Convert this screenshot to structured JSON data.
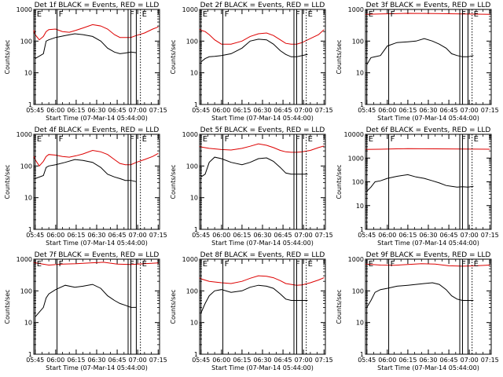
{
  "colors": {
    "events": "#000000",
    "lld": "#dd0000",
    "axis": "#000000"
  },
  "shared": {
    "xlabel": "Start Time (07-Mar-14 05:44:00)",
    "ylabel": "Counts/sec",
    "x_tick_labels": [
      "05:45",
      "06:00",
      "06:15",
      "06:30",
      "06:45",
      "07:00",
      "07:15"
    ]
  },
  "chart_data": [
    {
      "type": "line",
      "title": "Det 1f BLACK = Events, RED = LLD",
      "xlabel": "Start Time (07-Mar-14 05:44:00)",
      "ylabel": "Counts/sec",
      "scale": "log",
      "ylim": [
        1,
        1000
      ],
      "y_ticks": [
        "1",
        "10",
        "100",
        "1000"
      ],
      "series": [
        {
          "name": "Events",
          "color": "#000000",
          "x": [
            0,
            6,
            8,
            10,
            15,
            22,
            29,
            35,
            42,
            48,
            53,
            58,
            62,
            66,
            70,
            74
          ],
          "values": [
            28,
            40,
            100,
            110,
            130,
            150,
            170,
            160,
            140,
            100,
            60,
            45,
            40,
            42,
            45,
            43
          ]
        },
        {
          "name": "LLD",
          "color": "#dd0000",
          "x": [
            -3,
            0,
            3,
            6,
            8,
            10,
            15,
            20,
            25,
            30,
            35,
            42,
            48,
            53,
            58,
            62,
            66,
            70,
            74,
            80,
            86,
            90
          ],
          "values": [
            220,
            160,
            110,
            140,
            200,
            230,
            240,
            200,
            190,
            220,
            260,
            330,
            300,
            240,
            160,
            130,
            130,
            130,
            150,
            180,
            240,
            280
          ]
        }
      ],
      "markers": [
        {
          "x": 0,
          "label": "E"
        },
        {
          "x": 16,
          "label": "F"
        },
        {
          "x": 68,
          "label": "F"
        },
        {
          "x": 70,
          "label": ""
        },
        {
          "x": 74,
          "label": ""
        },
        {
          "x": 77,
          "label": "E"
        }
      ]
    },
    {
      "type": "line",
      "title": "Det 2f BLACK = Events, RED = LLD",
      "xlabel": "Start Time (07-Mar-14 05:44:00)",
      "ylabel": "Counts/sec",
      "scale": "log",
      "ylim": [
        1,
        1000
      ],
      "y_ticks": [
        "1",
        "10",
        "100",
        "1000"
      ],
      "series": [
        {
          "name": "Events",
          "color": "#000000",
          "x": [
            0,
            3,
            6,
            10,
            15,
            22,
            30,
            36,
            42,
            48,
            53,
            58,
            62,
            66,
            70,
            74,
            78
          ],
          "values": [
            22,
            28,
            32,
            33,
            35,
            40,
            60,
            100,
            115,
            110,
            80,
            50,
            38,
            32,
            32,
            35,
            38
          ]
        },
        {
          "name": "LLD",
          "color": "#dd0000",
          "x": [
            -3,
            0,
            3,
            6,
            10,
            15,
            22,
            30,
            36,
            42,
            48,
            53,
            58,
            62,
            66,
            70,
            74,
            80,
            86,
            90
          ],
          "values": [
            240,
            220,
            200,
            160,
            110,
            80,
            80,
            100,
            140,
            170,
            180,
            150,
            110,
            85,
            80,
            80,
            90,
            120,
            160,
            230
          ]
        }
      ],
      "markers": [
        {
          "x": 0,
          "label": "E"
        },
        {
          "x": 16,
          "label": "F"
        },
        {
          "x": 68,
          "label": "F"
        },
        {
          "x": 70,
          "label": ""
        },
        {
          "x": 74,
          "label": ""
        },
        {
          "x": 77,
          "label": "E"
        }
      ]
    },
    {
      "type": "line",
      "title": "Det 3f BLACK = Events, RED = LLD",
      "xlabel": "Start Time (07-Mar-14 05:44:00)",
      "ylabel": "Counts/sec",
      "scale": "log",
      "ylim": [
        1,
        1000
      ],
      "y_ticks": [
        "1",
        "10",
        "100",
        "1000"
      ],
      "series": [
        {
          "name": "Events",
          "color": "#000000",
          "x": [
            0,
            3,
            6,
            10,
            15,
            22,
            30,
            36,
            42,
            48,
            53,
            58,
            62,
            66,
            70,
            74,
            78
          ],
          "values": [
            18,
            30,
            32,
            35,
            70,
            90,
            95,
            100,
            120,
            100,
            80,
            60,
            40,
            35,
            32,
            32,
            35
          ]
        },
        {
          "name": "LLD",
          "color": "#dd0000",
          "x": [
            -3,
            10,
            30,
            50,
            70,
            90
          ],
          "values": [
            700,
            720,
            750,
            740,
            720,
            700
          ]
        }
      ],
      "markers": [
        {
          "x": 0,
          "label": "E"
        },
        {
          "x": 16,
          "label": "F"
        },
        {
          "x": 68,
          "label": "F"
        },
        {
          "x": 70,
          "label": ""
        },
        {
          "x": 74,
          "label": ""
        },
        {
          "x": 77,
          "label": "E"
        }
      ]
    },
    {
      "type": "line",
      "title": "Det 4f BLACK = Events, RED = LLD",
      "xlabel": "Start Time (07-Mar-14 05:44:00)",
      "ylabel": "Counts/sec",
      "scale": "log",
      "ylim": [
        1,
        1000
      ],
      "y_ticks": [
        "1",
        "10",
        "100",
        "1000"
      ],
      "series": [
        {
          "name": "Events",
          "color": "#000000",
          "x": [
            0,
            6,
            8,
            10,
            15,
            22,
            29,
            35,
            42,
            48,
            53,
            58,
            62,
            66,
            70,
            74
          ],
          "values": [
            40,
            50,
            90,
            100,
            110,
            130,
            160,
            150,
            130,
            90,
            55,
            45,
            40,
            35,
            35,
            32
          ]
        },
        {
          "name": "LLD",
          "color": "#dd0000",
          "x": [
            -3,
            0,
            3,
            6,
            8,
            10,
            15,
            20,
            25,
            30,
            35,
            42,
            48,
            53,
            58,
            62,
            66,
            70,
            74,
            80,
            86,
            90
          ],
          "values": [
            200,
            160,
            100,
            140,
            200,
            230,
            220,
            200,
            190,
            210,
            240,
            310,
            280,
            230,
            160,
            120,
            110,
            110,
            130,
            160,
            200,
            250
          ]
        }
      ],
      "markers": [
        {
          "x": 0,
          "label": "E"
        },
        {
          "x": 16,
          "label": "F"
        },
        {
          "x": 68,
          "label": "F"
        },
        {
          "x": 70,
          "label": ""
        },
        {
          "x": 74,
          "label": ""
        },
        {
          "x": 77,
          "label": "E"
        }
      ]
    },
    {
      "type": "line",
      "title": "Det 5f BLACK = Events, RED = LLD",
      "xlabel": "Start Time (07-Mar-14 05:44:00)",
      "ylabel": "Counts/sec",
      "scale": "log",
      "ylim": [
        1,
        1000
      ],
      "y_ticks": [
        "1",
        "10",
        "100",
        "1000"
      ],
      "series": [
        {
          "name": "Events",
          "color": "#000000",
          "x": [
            0,
            3,
            6,
            10,
            15,
            22,
            30,
            36,
            42,
            48,
            53,
            58,
            62,
            66,
            70,
            74,
            78
          ],
          "values": [
            45,
            55,
            130,
            190,
            170,
            130,
            110,
            130,
            170,
            180,
            140,
            90,
            60,
            55,
            55,
            55,
            55
          ]
        },
        {
          "name": "LLD",
          "color": "#dd0000",
          "x": [
            -3,
            0,
            6,
            15,
            22,
            30,
            36,
            42,
            48,
            53,
            58,
            62,
            66,
            70,
            74,
            80,
            86,
            90
          ],
          "values": [
            420,
            400,
            360,
            330,
            320,
            360,
            420,
            500,
            450,
            380,
            310,
            280,
            270,
            270,
            280,
            310,
            380,
            430
          ]
        }
      ],
      "markers": [
        {
          "x": 0,
          "label": "E"
        },
        {
          "x": 16,
          "label": "F"
        },
        {
          "x": 68,
          "label": "F"
        },
        {
          "x": 70,
          "label": ""
        },
        {
          "x": 74,
          "label": ""
        },
        {
          "x": 77,
          "label": "E"
        }
      ]
    },
    {
      "type": "line",
      "title": "Det 6f BLACK = Events, RED = LLD",
      "xlabel": "Start Time (07-Mar-14 05:44:00)",
      "ylabel": "Counts/sec",
      "scale": "log",
      "ylim": [
        1,
        10000
      ],
      "y_ticks": [
        "1",
        "10",
        "100",
        "1000",
        "10000"
      ],
      "series": [
        {
          "name": "Events",
          "color": "#000000",
          "x": [
            0,
            3,
            6,
            10,
            15,
            22,
            30,
            36,
            42,
            48,
            53,
            58,
            62,
            66,
            70,
            74,
            78
          ],
          "values": [
            40,
            60,
            100,
            110,
            140,
            170,
            200,
            160,
            140,
            110,
            90,
            70,
            65,
            60,
            62,
            60,
            65
          ]
        },
        {
          "name": "LLD",
          "color": "#dd0000",
          "x": [
            -3,
            10,
            30,
            50,
            70,
            90
          ],
          "values": [
            2300,
            2350,
            2500,
            2450,
            2400,
            2350
          ]
        }
      ],
      "markers": [
        {
          "x": 0,
          "label": "E"
        },
        {
          "x": 16,
          "label": "F"
        },
        {
          "x": 68,
          "label": "F"
        },
        {
          "x": 70,
          "label": ""
        },
        {
          "x": 74,
          "label": ""
        },
        {
          "x": 77,
          "label": "E"
        }
      ]
    },
    {
      "type": "line",
      "title": "Det 7f BLACK = Events, RED = LLD",
      "xlabel": "Start Time (07-Mar-14 05:44:00)",
      "ylabel": "Counts/sec",
      "scale": "log",
      "ylim": [
        1,
        1000
      ],
      "y_ticks": [
        "1",
        "10",
        "100",
        "1000"
      ],
      "series": [
        {
          "name": "Events",
          "color": "#000000",
          "x": [
            0,
            6,
            8,
            10,
            15,
            22,
            29,
            35,
            42,
            48,
            53,
            58,
            62,
            66,
            70,
            74
          ],
          "values": [
            15,
            30,
            60,
            80,
            110,
            150,
            130,
            140,
            160,
            120,
            70,
            50,
            40,
            35,
            30,
            30
          ]
        },
        {
          "name": "LLD",
          "color": "#dd0000",
          "x": [
            -3,
            10,
            20,
            30,
            40,
            50,
            60,
            70,
            80,
            90
          ],
          "values": [
            780,
            650,
            700,
            720,
            760,
            800,
            700,
            680,
            720,
            760
          ]
        }
      ],
      "markers": [
        {
          "x": 0,
          "label": "E"
        },
        {
          "x": 16,
          "label": "F"
        },
        {
          "x": 68,
          "label": "F"
        },
        {
          "x": 70,
          "label": ""
        },
        {
          "x": 74,
          "label": ""
        },
        {
          "x": 77,
          "label": "E"
        }
      ]
    },
    {
      "type": "line",
      "title": "Det 8f BLACK = Events, RED = LLD",
      "xlabel": "Start Time (07-Mar-14 05:44:00)",
      "ylabel": "Counts/sec",
      "scale": "log",
      "ylim": [
        1,
        1000
      ],
      "y_ticks": [
        "1",
        "10",
        "100",
        "1000"
      ],
      "series": [
        {
          "name": "Events",
          "color": "#000000",
          "x": [
            0,
            3,
            6,
            10,
            15,
            22,
            30,
            36,
            42,
            48,
            53,
            58,
            62,
            66,
            70,
            74,
            78
          ],
          "values": [
            20,
            40,
            70,
            100,
            110,
            90,
            100,
            130,
            150,
            140,
            120,
            80,
            55,
            50,
            50,
            50,
            50
          ]
        },
        {
          "name": "LLD",
          "color": "#dd0000",
          "x": [
            -3,
            0,
            6,
            15,
            22,
            30,
            36,
            42,
            48,
            53,
            58,
            62,
            66,
            70,
            74,
            80,
            86,
            90
          ],
          "values": [
            260,
            240,
            200,
            180,
            170,
            200,
            250,
            300,
            290,
            260,
            210,
            170,
            160,
            150,
            155,
            180,
            220,
            260
          ]
        }
      ],
      "markers": [
        {
          "x": 0,
          "label": "E"
        },
        {
          "x": 16,
          "label": "F"
        },
        {
          "x": 68,
          "label": "F"
        },
        {
          "x": 70,
          "label": ""
        },
        {
          "x": 74,
          "label": ""
        },
        {
          "x": 77,
          "label": "E"
        }
      ]
    },
    {
      "type": "line",
      "title": "Det 9f BLACK = Events, RED = LLD",
      "xlabel": "Start Time (07-Mar-14 05:44:00)",
      "ylabel": "Counts/sec",
      "scale": "log",
      "ylim": [
        1,
        1000
      ],
      "y_ticks": [
        "1",
        "10",
        "100",
        "1000"
      ],
      "series": [
        {
          "name": "Events",
          "color": "#000000",
          "x": [
            0,
            3,
            6,
            10,
            15,
            22,
            30,
            36,
            42,
            48,
            53,
            58,
            62,
            66,
            70,
            74,
            78
          ],
          "values": [
            30,
            50,
            90,
            110,
            120,
            140,
            150,
            160,
            170,
            180,
            160,
            110,
            70,
            55,
            50,
            50,
            50
          ]
        },
        {
          "name": "LLD",
          "color": "#dd0000",
          "x": [
            -3,
            10,
            20,
            30,
            40,
            50,
            60,
            70,
            80,
            90
          ],
          "values": [
            700,
            650,
            640,
            680,
            720,
            700,
            620,
            600,
            620,
            650
          ]
        }
      ],
      "markers": [
        {
          "x": 0,
          "label": "E"
        },
        {
          "x": 16,
          "label": "F"
        },
        {
          "x": 68,
          "label": "F"
        },
        {
          "x": 70,
          "label": ""
        },
        {
          "x": 74,
          "label": ""
        },
        {
          "x": 77,
          "label": "E"
        }
      ]
    }
  ]
}
